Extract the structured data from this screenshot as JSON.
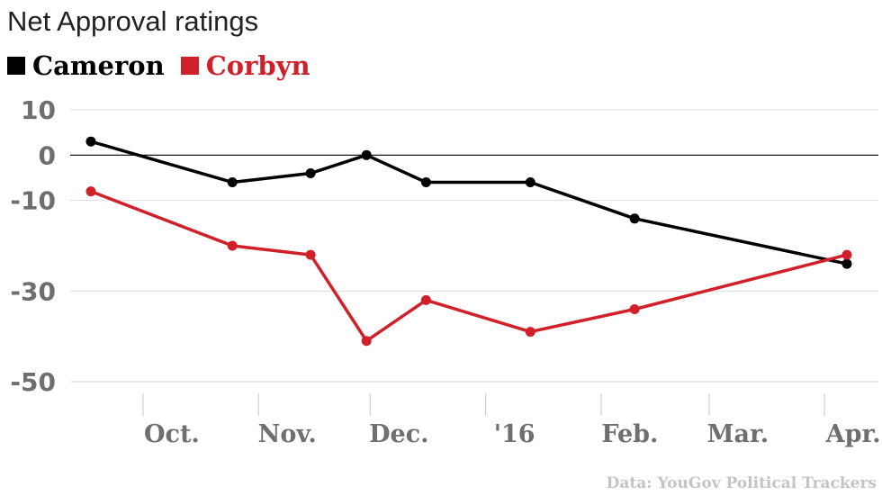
{
  "chart_data": {
    "type": "line",
    "title": "Net Approval ratings",
    "source": "Data: YouGov Political Trackers",
    "xlabel": "",
    "ylabel": "",
    "ylim": [
      -50,
      10
    ],
    "yticks": [
      10,
      0,
      -10,
      -30,
      -50
    ],
    "grid": true,
    "legend_position": "top-left",
    "x_ticks": [
      {
        "label": "Oct.",
        "date": "2015-10-01"
      },
      {
        "label": "Nov.",
        "date": "2015-11-01"
      },
      {
        "label": "Dec.",
        "date": "2015-12-01"
      },
      {
        "label": "'16",
        "date": "2016-01-01"
      },
      {
        "label": "Feb.",
        "date": "2016-02-01"
      },
      {
        "label": "Mar.",
        "date": "2016-03-01"
      },
      {
        "label": "Apr.",
        "date": "2016-04-01"
      }
    ],
    "x": [
      "2015-09-17",
      "2015-10-25",
      "2015-11-15",
      "2015-11-30",
      "2015-12-16",
      "2016-01-13",
      "2016-02-10",
      "2016-04-07"
    ],
    "series": [
      {
        "name": "Cameron",
        "color": "#000000",
        "values": [
          3,
          -6,
          -4,
          0,
          -6,
          -6,
          -14,
          -24
        ]
      },
      {
        "name": "Corbyn",
        "color": "#d0202a",
        "values": [
          -8,
          -20,
          -22,
          -41,
          -32,
          -39,
          -34,
          -22
        ]
      }
    ],
    "colors": {
      "zero_line": "#000000",
      "grid": "#dddddd",
      "tick_text": "#6f6f6f",
      "source_text": "#c4c4c4"
    }
  }
}
